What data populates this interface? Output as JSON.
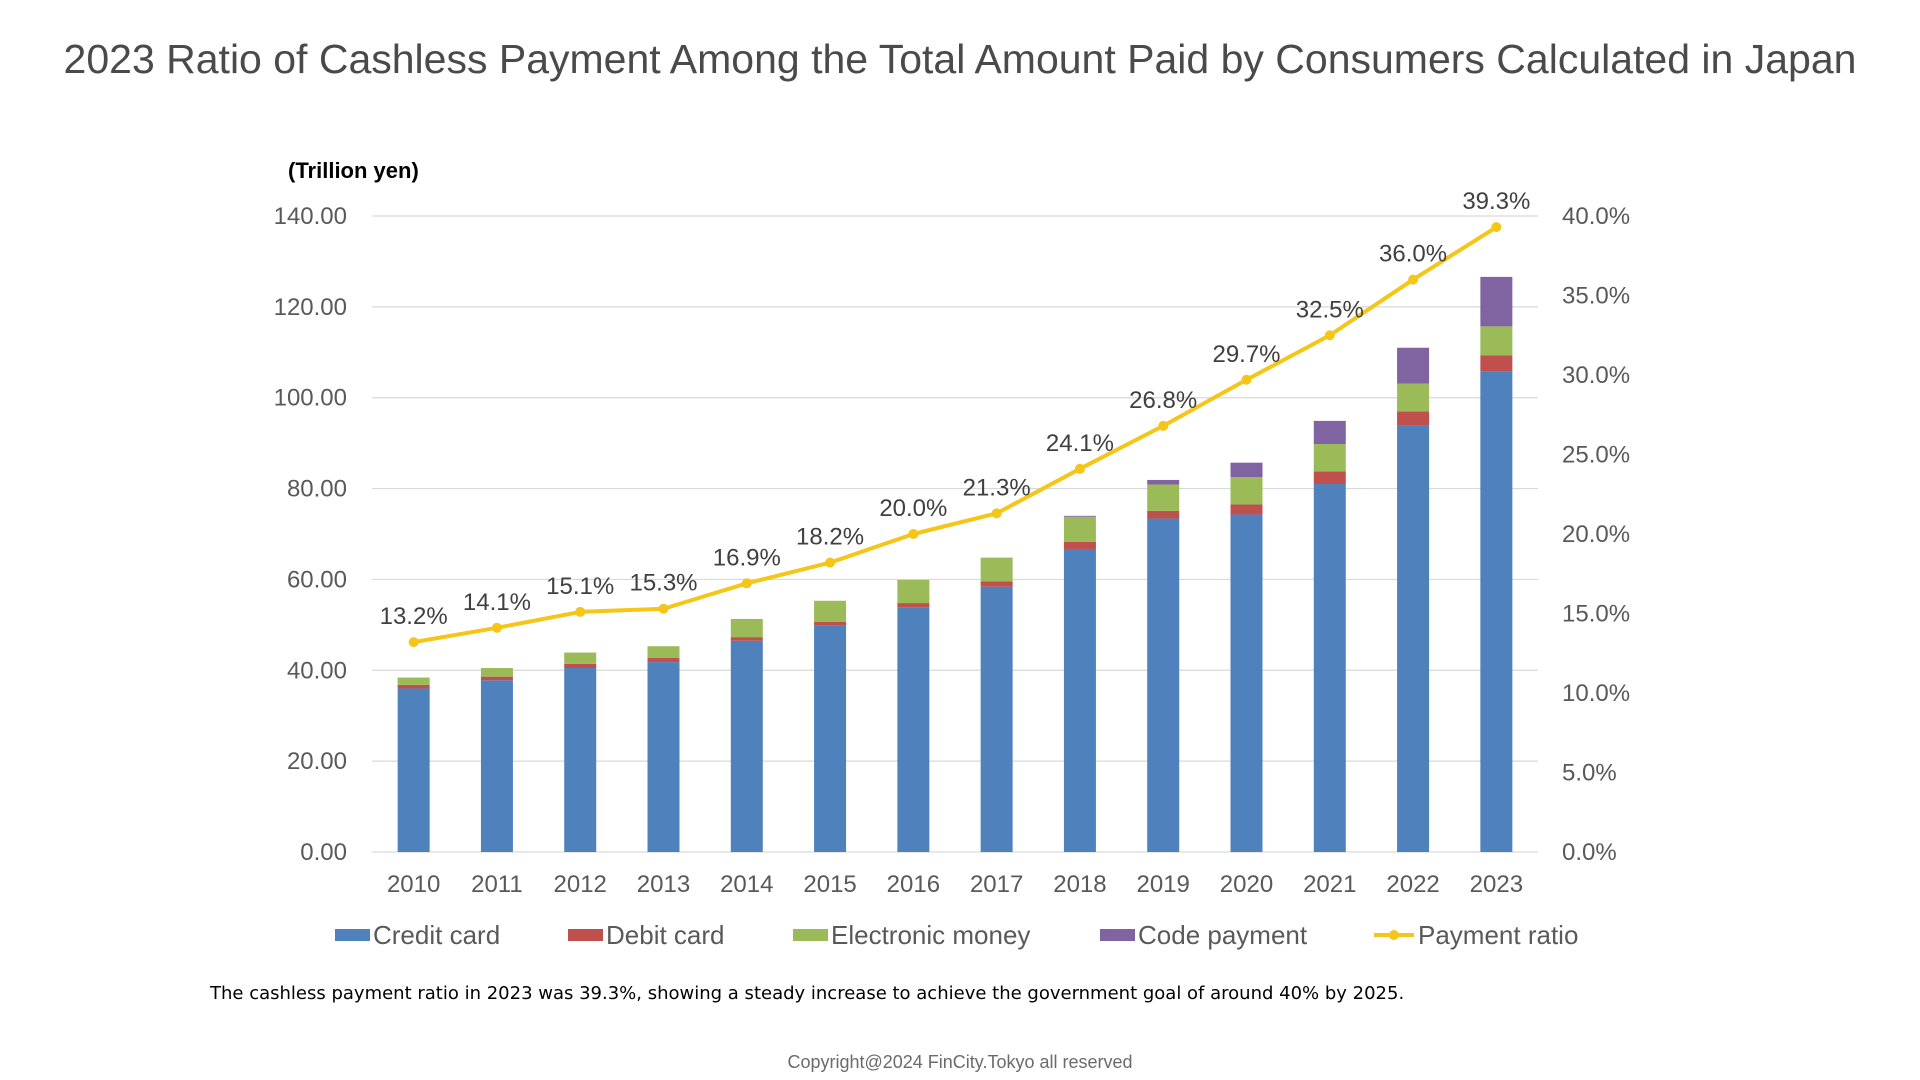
{
  "page": {
    "title": "2023 Ratio of Cashless Payment Among the Total Amount Paid by Consumers Calculated in Japan",
    "caption": "The cashless payment ratio in 2023 was 39.3%, showing a steady increase to achieve the government goal of around 40% by 2025.",
    "copyright": "Copyright@2024 FinCity.Tokyo all reserved"
  },
  "chart_data": {
    "type": "bar",
    "stacked": true,
    "categories": [
      "2010",
      "2011",
      "2012",
      "2013",
      "2014",
      "2015",
      "2016",
      "2017",
      "2018",
      "2019",
      "2020",
      "2021",
      "2022",
      "2023"
    ],
    "y_unit_label": "(Trillion yen)",
    "ylim": [
      0,
      140
    ],
    "y_ticks": [
      "0.00",
      "20.00",
      "40.00",
      "60.00",
      "80.00",
      "100.00",
      "120.00",
      "140.00"
    ],
    "y2lim": [
      0,
      40
    ],
    "y2_ticks": [
      "0.0%",
      "5.0%",
      "10.0%",
      "15.0%",
      "20.0%",
      "25.0%",
      "30.0%",
      "35.0%",
      "40.0%"
    ],
    "grid": true,
    "legend_position": "bottom",
    "series": [
      {
        "name": "Credit card",
        "color": "#4f81bd",
        "values": [
          36.0,
          37.8,
          40.5,
          41.8,
          46.5,
          49.8,
          53.9,
          58.4,
          66.7,
          73.4,
          74.3,
          81.0,
          93.8,
          105.7
        ]
      },
      {
        "name": "Debit card",
        "color": "#c0504d",
        "values": [
          0.8,
          0.8,
          0.9,
          0.9,
          0.8,
          0.9,
          0.9,
          1.2,
          1.6,
          1.7,
          2.2,
          2.8,
          3.2,
          3.6
        ]
      },
      {
        "name": "Electronic money",
        "color": "#9bbb59",
        "values": [
          1.6,
          1.9,
          2.5,
          2.6,
          4.0,
          4.6,
          5.1,
          5.2,
          5.5,
          5.8,
          6.0,
          6.0,
          6.1,
          6.4
        ]
      },
      {
        "name": "Code payment",
        "color": "#8064a2",
        "values": [
          0,
          0,
          0,
          0,
          0,
          0,
          0,
          0,
          0.2,
          1.0,
          3.2,
          5.1,
          7.9,
          10.9
        ]
      }
    ],
    "line_series": {
      "name": "Payment ratio",
      "color": "#f5c518",
      "axis": "right",
      "values": [
        13.2,
        14.1,
        15.1,
        15.3,
        16.9,
        18.2,
        20.0,
        21.3,
        24.1,
        26.8,
        29.7,
        32.5,
        36.0,
        39.3
      ],
      "labels": [
        "13.2%",
        "14.1%",
        "15.1%",
        "15.3%",
        "16.9%",
        "18.2%",
        "20.0%",
        "21.3%",
        "24.1%",
        "26.8%",
        "29.7%",
        "32.5%",
        "36.0%",
        "39.3%"
      ]
    }
  }
}
